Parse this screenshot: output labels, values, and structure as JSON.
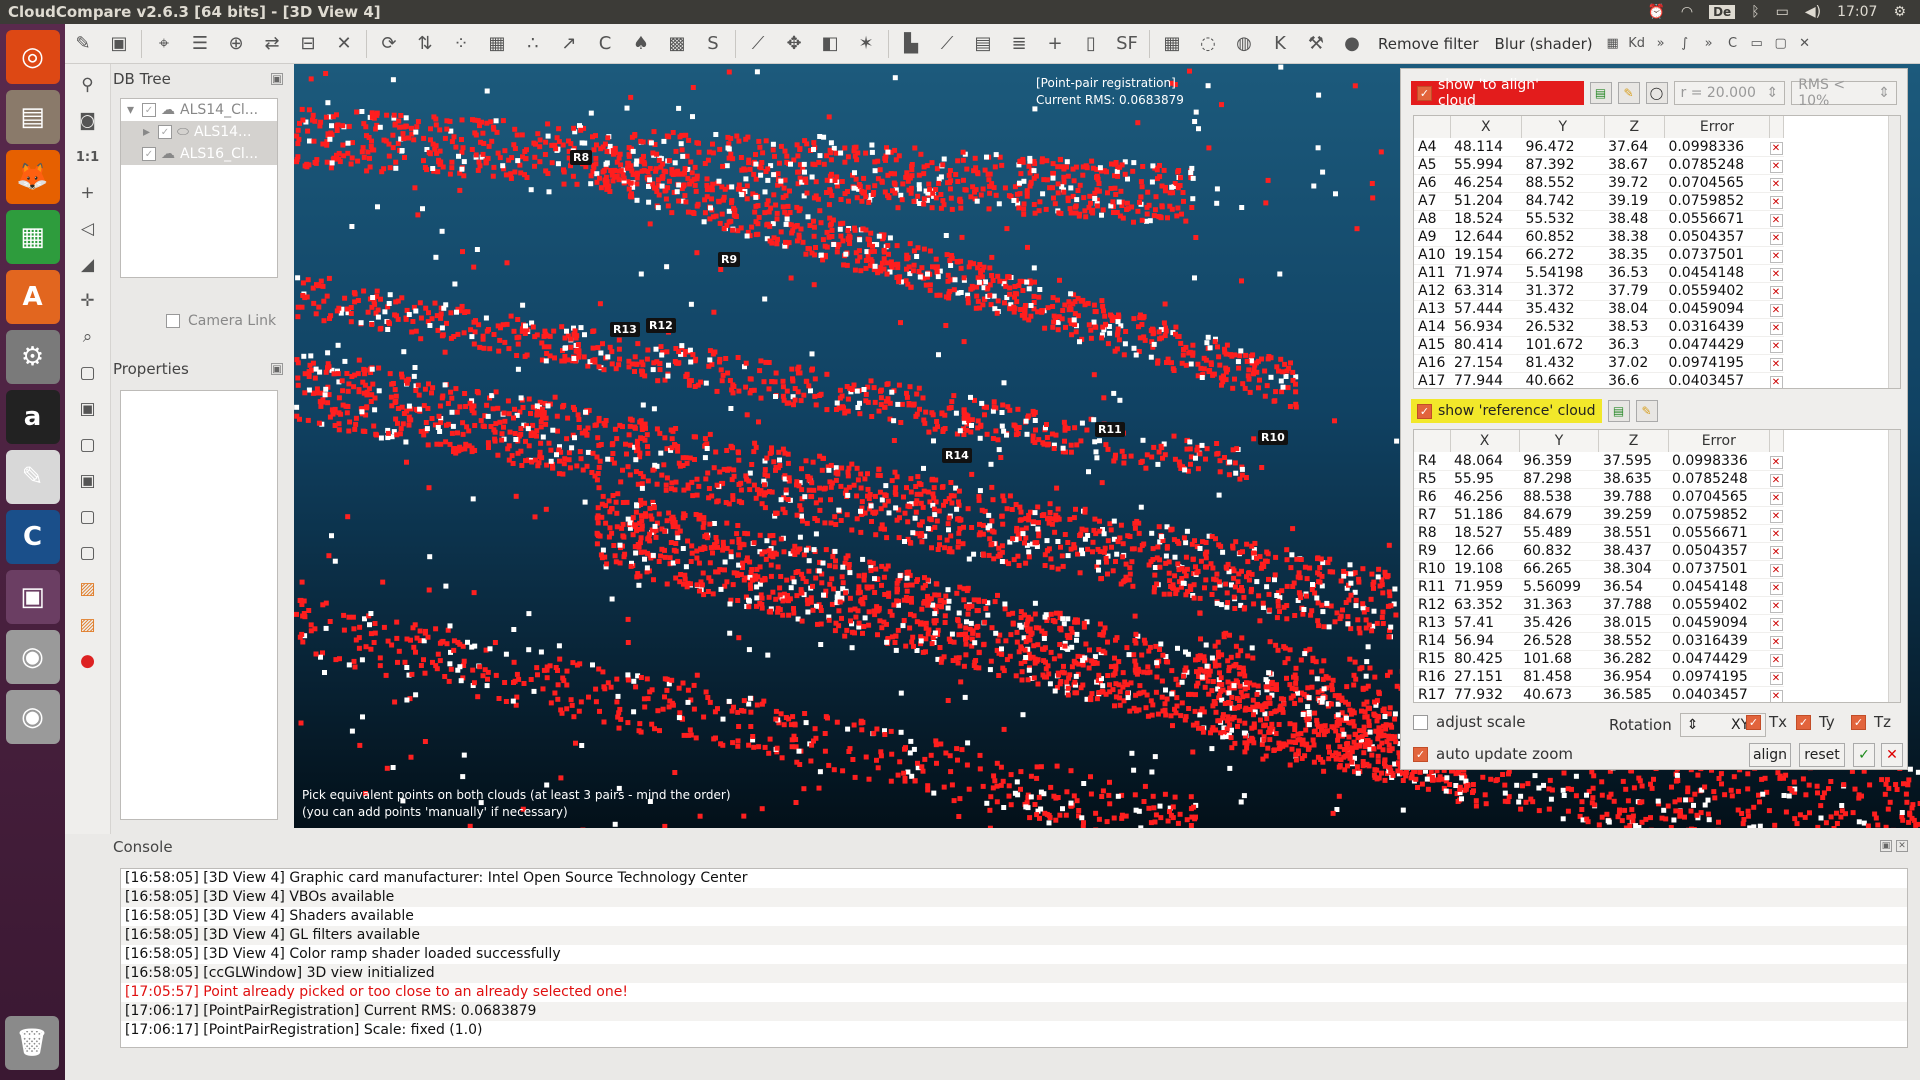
{
  "window_title": "CloudCompare v2.6.3 [64 bits] - [3D View 4]",
  "tray": {
    "clock": "17:07",
    "keyboard": "De",
    "alarm_icon": "alarm-clock-icon",
    "wifi_icon": "wifi-icon",
    "bluetooth_icon": "bluetooth-icon",
    "battery_icon": "battery-icon",
    "volume_icon": "volume-icon",
    "settings_icon": "gear-icon"
  },
  "launcher": [
    {
      "name": "ubuntu-dash",
      "glyph": "◎",
      "bg": "#dd4814"
    },
    {
      "name": "files",
      "glyph": "▤",
      "bg": "#8a7a6a"
    },
    {
      "name": "firefox",
      "glyph": "🦊",
      "bg": "#e66000"
    },
    {
      "name": "libreoffice-calc",
      "glyph": "▦",
      "bg": "#2e9c3d"
    },
    {
      "name": "software-center",
      "glyph": "A",
      "bg": "#e2661f"
    },
    {
      "name": "system-settings",
      "glyph": "⚙",
      "bg": "#7a7a7a"
    },
    {
      "name": "amazon",
      "glyph": "a",
      "bg": "#222222"
    },
    {
      "name": "text-editor",
      "glyph": "✎",
      "bg": "#d8d8d8"
    },
    {
      "name": "cloudcompare",
      "glyph": "C",
      "bg": "#1a4f8a"
    },
    {
      "name": "workspace-switcher",
      "glyph": "▣",
      "bg": "#6b3e63"
    },
    {
      "name": "disk-1",
      "glyph": "◉",
      "bg": "#9a9a9a"
    },
    {
      "name": "disk-2",
      "glyph": "◉",
      "bg": "#9a9a9a"
    },
    {
      "name": "trash",
      "glyph": "🗑",
      "bg": "#8a8a8a"
    }
  ],
  "toolbar": {
    "icons": [
      "open-icon",
      "save-icon",
      "sep",
      "pick-icon",
      "list-icon",
      "crosshair-icon",
      "shift-icon",
      "segment-icon",
      "delete-icon",
      "sep",
      "translate-icon",
      "align-icon",
      "sample-icon",
      "mesh-icon",
      "noise-icon",
      "distance-icon",
      "cc-icon",
      "brush-icon",
      "checker-icon",
      "sor-icon",
      "sep",
      "normal-icon",
      "move-icon",
      "plane-icon",
      "star-icon",
      "sep",
      "histogram-icon",
      "graph-icon",
      "grid-icon",
      "stack-icon",
      "plus-icon",
      "memory-icon",
      "sf-icon",
      "sep",
      "film-icon",
      "ring-icon",
      "globe-icon",
      "k-icon",
      "bones-icon",
      "sphere-icon"
    ],
    "remove_filter": "Remove filter",
    "blur_shader": "Blur (shader)",
    "kd_label": "Kd"
  },
  "dbtree": {
    "title": "DB Tree",
    "items": [
      {
        "label": "ALS14_Cl...",
        "selected": false,
        "indent": 0
      },
      {
        "label": "ALS14...",
        "selected": true,
        "indent": 1
      },
      {
        "label": "ALS16_Cl...",
        "selected": true,
        "indent": 0
      }
    ],
    "camera_link": "Camera Link"
  },
  "properties": {
    "title": "Properties"
  },
  "view3d": {
    "overlay_title": "[Point-pair registration]",
    "overlay_rms": "Current RMS: 0.0683879",
    "hint_line1": "Pick equivalent points on both clouds (at least 3 pairs - mind the order)",
    "hint_line2": "(you can add points 'manually' if necessary)",
    "tags": [
      "R8",
      "R9",
      "R13",
      "R12",
      "R11",
      "R10",
      "R14"
    ]
  },
  "registration": {
    "show_align": "show 'to align' cloud",
    "radius": "r = 20.000",
    "rms_filter": "RMS < 10%",
    "show_ref": "show 'reference' cloud",
    "columns": [
      "X",
      "Y",
      "Z",
      "Error"
    ],
    "align_rows": [
      [
        "A4",
        "48.114",
        "96.472",
        "37.64",
        "0.0998336"
      ],
      [
        "A5",
        "55.994",
        "87.392",
        "38.67",
        "0.0785248"
      ],
      [
        "A6",
        "46.254",
        "88.552",
        "39.72",
        "0.0704565"
      ],
      [
        "A7",
        "51.204",
        "84.742",
        "39.19",
        "0.0759852"
      ],
      [
        "A8",
        "18.524",
        "55.532",
        "38.48",
        "0.0556671"
      ],
      [
        "A9",
        "12.644",
        "60.852",
        "38.38",
        "0.0504357"
      ],
      [
        "A10",
        "19.154",
        "66.272",
        "38.35",
        "0.0737501"
      ],
      [
        "A11",
        "71.974",
        "5.54198",
        "36.53",
        "0.0454148"
      ],
      [
        "A12",
        "63.314",
        "31.372",
        "37.79",
        "0.0559402"
      ],
      [
        "A13",
        "57.444",
        "35.432",
        "38.04",
        "0.0459094"
      ],
      [
        "A14",
        "56.934",
        "26.532",
        "38.53",
        "0.0316439"
      ],
      [
        "A15",
        "80.414",
        "101.672",
        "36.3",
        "0.0474429"
      ],
      [
        "A16",
        "27.154",
        "81.432",
        "37.02",
        "0.0974195"
      ],
      [
        "A17",
        "77.944",
        "40.662",
        "36.6",
        "0.0403457"
      ]
    ],
    "ref_rows": [
      [
        "R4",
        "48.064",
        "96.359",
        "37.595",
        "0.0998336"
      ],
      [
        "R5",
        "55.95",
        "87.298",
        "38.635",
        "0.0785248"
      ],
      [
        "R6",
        "46.256",
        "88.538",
        "39.788",
        "0.0704565"
      ],
      [
        "R7",
        "51.186",
        "84.679",
        "39.259",
        "0.0759852"
      ],
      [
        "R8",
        "18.527",
        "55.489",
        "38.551",
        "0.0556671"
      ],
      [
        "R9",
        "12.66",
        "60.832",
        "38.437",
        "0.0504357"
      ],
      [
        "R10",
        "19.108",
        "66.265",
        "38.304",
        "0.0737501"
      ],
      [
        "R11",
        "71.959",
        "5.56099",
        "36.54",
        "0.0454148"
      ],
      [
        "R12",
        "63.352",
        "31.363",
        "37.788",
        "0.0559402"
      ],
      [
        "R13",
        "57.41",
        "35.426",
        "38.015",
        "0.0459094"
      ],
      [
        "R14",
        "56.94",
        "26.528",
        "38.552",
        "0.0316439"
      ],
      [
        "R15",
        "80.425",
        "101.68",
        "36.282",
        "0.0474429"
      ],
      [
        "R16",
        "27.151",
        "81.458",
        "36.954",
        "0.0974195"
      ],
      [
        "R17",
        "77.932",
        "40.673",
        "36.585",
        "0.0403457"
      ]
    ],
    "adjust_scale": "adjust scale",
    "rotation_label": "Rotation",
    "rotation_value": "XYZ",
    "tx": "Tx",
    "ty": "Ty",
    "tz": "Tz",
    "auto_update_zoom": "auto update zoom",
    "align_btn": "align",
    "reset_btn": "reset",
    "accent_red": "#e31c1c",
    "accent_yellow": "#f2e82a"
  },
  "console": {
    "title": "Console",
    "lines": [
      {
        "text": "[16:58:05] [3D View 4] Graphic card manufacturer: Intel Open Source Technology Center",
        "error": false
      },
      {
        "text": "[16:58:05] [3D View 4] VBOs available",
        "error": false
      },
      {
        "text": "[16:58:05] [3D View 4] Shaders available",
        "error": false
      },
      {
        "text": "[16:58:05] [3D View 4] GL filters available",
        "error": false
      },
      {
        "text": "[16:58:05] [3D View 4] Color ramp shader loaded successfully",
        "error": false
      },
      {
        "text": "[16:58:05] [ccGLWindow] 3D view initialized",
        "error": false
      },
      {
        "text": "[17:05:57] Point already picked or too close to an already selected one!",
        "error": true
      },
      {
        "text": "[17:06:17] [PointPairRegistration] Current RMS: 0.0683879",
        "error": false
      },
      {
        "text": "[17:06:17] [PointPairRegistration] Scale: fixed (1.0)",
        "error": false
      }
    ]
  }
}
